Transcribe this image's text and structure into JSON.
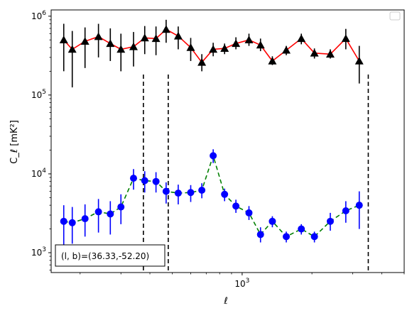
{
  "chart_data": {
    "type": "scatter",
    "title": "",
    "xlabel": "ℓ",
    "ylabel": "C_ℓ [mK²]",
    "xscale": "log",
    "yscale": "log",
    "xlim": [
      150,
      5000
    ],
    "ylim": [
      560,
      1200000
    ],
    "x_tick_labels": [
      {
        "value": 1000,
        "base": "10",
        "exp": "3"
      }
    ],
    "y_tick_labels": [
      {
        "value": 1000,
        "base": "10",
        "exp": "3"
      },
      {
        "value": 10000,
        "base": "10",
        "exp": "4"
      },
      {
        "value": 100000,
        "base": "10",
        "exp": "5"
      },
      {
        "value": 1000000,
        "base": "10",
        "exp": "6"
      }
    ],
    "grid": false,
    "legend": "top-right (empty)",
    "vlines_x": [
      375,
      480,
      3500
    ],
    "annotation": {
      "text": "(l, b)=(36.33,-52.20)",
      "position": "bottom-left"
    },
    "series": [
      {
        "style": "triangle markers, solid line",
        "marker_color": "#000000",
        "line_color": "#ff0000",
        "points": [
          {
            "x": 170,
            "y": 500000,
            "lo": 200000,
            "hi": 800000
          },
          {
            "x": 185,
            "y": 380000,
            "lo": 125000,
            "hi": 650000
          },
          {
            "x": 210,
            "y": 480000,
            "lo": 220000,
            "hi": 720000
          },
          {
            "x": 240,
            "y": 550000,
            "lo": 300000,
            "hi": 800000
          },
          {
            "x": 270,
            "y": 450000,
            "lo": 270000,
            "hi": 700000
          },
          {
            "x": 300,
            "y": 380000,
            "lo": 200000,
            "hi": 600000
          },
          {
            "x": 340,
            "y": 410000,
            "lo": 230000,
            "hi": 630000
          },
          {
            "x": 380,
            "y": 530000,
            "lo": 330000,
            "hi": 750000
          },
          {
            "x": 425,
            "y": 520000,
            "lo": 320000,
            "hi": 740000
          },
          {
            "x": 470,
            "y": 680000,
            "lo": 460000,
            "hi": 900000
          },
          {
            "x": 530,
            "y": 560000,
            "lo": 380000,
            "hi": 740000
          },
          {
            "x": 600,
            "y": 400000,
            "lo": 270000,
            "hi": 530000
          },
          {
            "x": 670,
            "y": 260000,
            "lo": 200000,
            "hi": 330000
          },
          {
            "x": 750,
            "y": 380000,
            "lo": 310000,
            "hi": 460000
          },
          {
            "x": 840,
            "y": 390000,
            "lo": 330000,
            "hi": 450000
          },
          {
            "x": 940,
            "y": 450000,
            "lo": 380000,
            "hi": 540000
          },
          {
            "x": 1070,
            "y": 500000,
            "lo": 420000,
            "hi": 600000
          },
          {
            "x": 1200,
            "y": 430000,
            "lo": 360000,
            "hi": 520000
          },
          {
            "x": 1350,
            "y": 270000,
            "lo": 240000,
            "hi": 310000
          },
          {
            "x": 1550,
            "y": 370000,
            "lo": 320000,
            "hi": 420000
          },
          {
            "x": 1800,
            "y": 520000,
            "lo": 440000,
            "hi": 600000
          },
          {
            "x": 2050,
            "y": 340000,
            "lo": 290000,
            "hi": 390000
          },
          {
            "x": 2400,
            "y": 330000,
            "lo": 290000,
            "hi": 380000
          },
          {
            "x": 2800,
            "y": 520000,
            "lo": 380000,
            "hi": 690000
          },
          {
            "x": 3200,
            "y": 270000,
            "lo": 140000,
            "hi": 420000
          }
        ]
      },
      {
        "style": "circle markers, dashed line",
        "marker_color": "#0000ff",
        "line_color": "#008000",
        "points": [
          {
            "x": 170,
            "y": 2500,
            "lo": 1200,
            "hi": 4000
          },
          {
            "x": 185,
            "y": 2400,
            "lo": 1300,
            "hi": 3800
          },
          {
            "x": 210,
            "y": 2700,
            "lo": 1600,
            "hi": 4100
          },
          {
            "x": 240,
            "y": 3300,
            "lo": 1800,
            "hi": 4800
          },
          {
            "x": 270,
            "y": 3100,
            "lo": 1700,
            "hi": 4500
          },
          {
            "x": 300,
            "y": 3800,
            "lo": 2300,
            "hi": 5500
          },
          {
            "x": 340,
            "y": 8800,
            "lo": 6300,
            "hi": 11500
          },
          {
            "x": 380,
            "y": 8200,
            "lo": 5800,
            "hi": 10800
          },
          {
            "x": 425,
            "y": 8000,
            "lo": 5800,
            "hi": 10500
          },
          {
            "x": 470,
            "y": 6000,
            "lo": 4200,
            "hi": 7800
          },
          {
            "x": 530,
            "y": 5700,
            "lo": 4100,
            "hi": 7300
          },
          {
            "x": 600,
            "y": 5800,
            "lo": 4400,
            "hi": 7200
          },
          {
            "x": 670,
            "y": 6200,
            "lo": 4900,
            "hi": 7600
          },
          {
            "x": 750,
            "y": 17000,
            "lo": 13700,
            "hi": 20500
          },
          {
            "x": 840,
            "y": 5500,
            "lo": 4500,
            "hi": 6500
          },
          {
            "x": 940,
            "y": 3900,
            "lo": 3200,
            "hi": 4700
          },
          {
            "x": 1070,
            "y": 3200,
            "lo": 2600,
            "hi": 3900
          },
          {
            "x": 1200,
            "y": 1700,
            "lo": 1350,
            "hi": 2100
          },
          {
            "x": 1350,
            "y": 2500,
            "lo": 2100,
            "hi": 2900
          },
          {
            "x": 1550,
            "y": 1600,
            "lo": 1350,
            "hi": 1850
          },
          {
            "x": 1800,
            "y": 2000,
            "lo": 1700,
            "hi": 2300
          },
          {
            "x": 2050,
            "y": 1600,
            "lo": 1350,
            "hi": 1850
          },
          {
            "x": 2400,
            "y": 2500,
            "lo": 1900,
            "hi": 3200
          },
          {
            "x": 2800,
            "y": 3400,
            "lo": 2400,
            "hi": 4500
          },
          {
            "x": 3200,
            "y": 4000,
            "lo": 2000,
            "hi": 6000
          }
        ]
      }
    ]
  }
}
